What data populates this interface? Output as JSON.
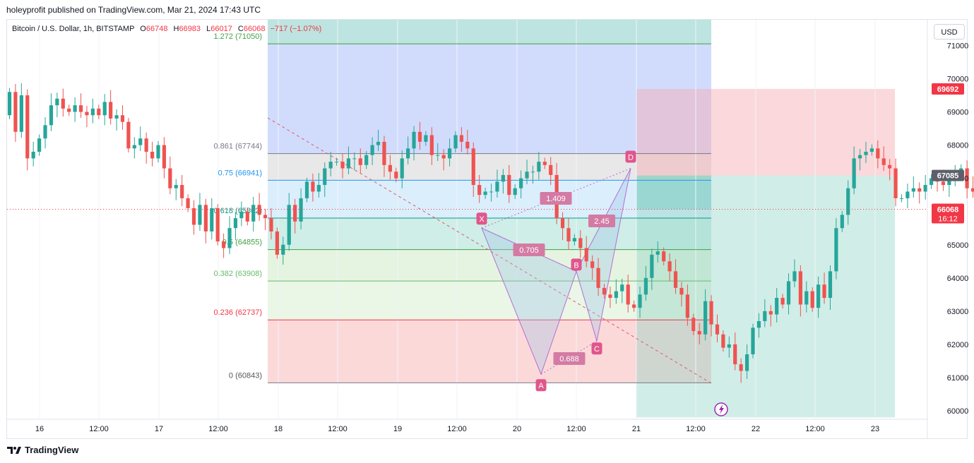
{
  "header": {
    "published": "holeyprofit published on TradingView.com, Mar 21, 2024 17:43 UTC"
  },
  "legend": {
    "symbol": "Bitcoin / U.S. Dollar, 1h, BITSTAMP",
    "o_label": "O",
    "o": "66748",
    "h_label": "H",
    "h": "66983",
    "l_label": "L",
    "l": "66017",
    "c_label": "C",
    "c": "66068",
    "change": "−717 (−1.07%)"
  },
  "currency_button": "USD",
  "footer": {
    "brand": "TradingView",
    "logo_icon": "tradingview-logo-icon"
  },
  "colors": {
    "up": "#26a69a",
    "down": "#ef5350",
    "accent_pink": "#e0568c",
    "fib_blue": "#2962ff"
  },
  "chart_data": {
    "type": "candlestick",
    "symbol": "BTCUSD",
    "interval": "1h",
    "ylim": [
      59800,
      71600
    ],
    "y_ticks": [
      "71000",
      "70000",
      "69000",
      "68000",
      "67000",
      "65000",
      "64000",
      "63000",
      "62000",
      "61000",
      "60000"
    ],
    "x_ticks": [
      "16",
      "12:00",
      "17",
      "12:00",
      "18",
      "12:00",
      "19",
      "12:00",
      "20",
      "12:00",
      "21",
      "12:00",
      "22",
      "12:00",
      "23"
    ],
    "price_badges": [
      {
        "label": "69692",
        "value": 69692,
        "style": "red"
      },
      {
        "label": "67085",
        "value": 67085,
        "style": "gray"
      },
      {
        "label": "66068",
        "value": 66068,
        "style": "red",
        "sub": "16:12"
      }
    ],
    "closes": [
      69600,
      68400,
      69500,
      67600,
      67800,
      68200,
      68600,
      69200,
      69400,
      69100,
      69000,
      69200,
      69000,
      68900,
      69100,
      68900,
      69300,
      68800,
      68900,
      68700,
      67900,
      68000,
      68200,
      67800,
      67600,
      68000,
      67300,
      66700,
      66800,
      66400,
      66100,
      65600,
      66200,
      65400,
      66100,
      65100,
      64900,
      65500,
      65800,
      66000,
      65700,
      66200,
      65900,
      65800,
      65400,
      64700,
      65000,
      66200,
      65700,
      66400,
      66900,
      66600,
      66800,
      67300,
      67500,
      67500,
      67300,
      67600,
      67600,
      67400,
      67700,
      68000,
      68100,
      67400,
      67200,
      67000,
      67600,
      67900,
      68400,
      68100,
      68300,
      67700,
      67700,
      67600,
      67900,
      68300,
      68100,
      67900,
      66800,
      66500,
      66600,
      66600,
      66900,
      67100,
      66500,
      66700,
      67000,
      67200,
      67200,
      67500,
      67400,
      67100,
      65800,
      65500,
      65100,
      65200,
      64900,
      64500,
      64300,
      63700,
      63500,
      63400,
      63600,
      63800,
      63200,
      63100,
      63500,
      64000,
      64700,
      64800,
      64500,
      64200,
      63700,
      63500,
      62800,
      62400,
      62300,
      63300,
      62600,
      62300,
      61900,
      62000,
      61400,
      61200,
      61700,
      62500,
      62700,
      63000,
      62900,
      63400,
      63200,
      63900,
      64200,
      63200,
      63600,
      63100,
      63800,
      63400,
      64200,
      65500,
      65900,
      66700,
      67600,
      67700,
      67800,
      67900,
      67600,
      67400,
      67300,
      66400,
      66400,
      66600,
      66700,
      66600,
      66800,
      67000,
      66900,
      66800,
      67000,
      67100,
      67300,
      66700,
      66600,
      66500,
      66700,
      66068
    ],
    "fib_retracement": {
      "type": "fib",
      "levels": [
        {
          "label": "1.272 (71050)",
          "ratio": 1.272,
          "price": 71050
        },
        {
          "label": "0.861 (67744)",
          "ratio": 0.861,
          "price": 67744
        },
        {
          "label": "0.75 (66941)",
          "ratio": 0.75,
          "price": 66941
        },
        {
          "label": "0.618 (65802)",
          "ratio": 0.618,
          "price": 65802
        },
        {
          "label": "0.5 (64855)",
          "ratio": 0.5,
          "price": 64855
        },
        {
          "label": "0.382 (63908)",
          "ratio": 0.382,
          "price": 63908
        },
        {
          "label": "0.236 (62737)",
          "ratio": 0.236,
          "price": 62737
        },
        {
          "label": "0 (60843)",
          "ratio": 0,
          "price": 60843
        }
      ]
    },
    "harmonic_pattern": {
      "points": [
        {
          "label": "X",
          "price": 65500
        },
        {
          "label": "A",
          "price": 61100
        },
        {
          "label": "B",
          "price": 64200
        },
        {
          "label": "C",
          "price": 62100
        },
        {
          "label": "D",
          "price": 67300
        }
      ],
      "ratios": [
        "1.409",
        "0.705",
        "0.688",
        "2.45"
      ]
    },
    "short_position": {
      "stop": 69692,
      "entry": 67085,
      "target": 59800
    },
    "current_price": 66068,
    "countdown": "16:12"
  }
}
